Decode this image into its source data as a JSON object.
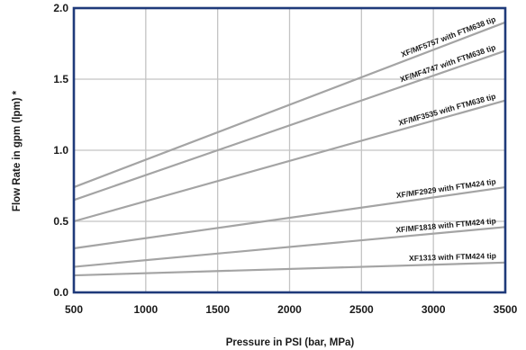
{
  "chart_data": {
    "type": "line",
    "xlabel": "Pressure in PSI (bar, MPa)",
    "ylabel": "Flow Rate in gpm (lpm) *",
    "xlim": [
      500,
      3500
    ],
    "ylim": [
      0,
      2.0
    ],
    "xticks": [
      "500",
      "1000",
      "1500",
      "2000",
      "2500",
      "3000",
      "3500"
    ],
    "yticks": [
      "0.0",
      "0.5",
      "1.0",
      "1.5",
      "2.0"
    ],
    "grid": true,
    "colors": {
      "series": "#a4a4a4",
      "grid": "#c4c4c4",
      "frame": "#1f3a7a",
      "text": "#1a1a1a"
    },
    "series": [
      {
        "name": "XF/MF5757 with FTM638 tip",
        "x": [
          500,
          3500
        ],
        "values": [
          0.74,
          1.9
        ]
      },
      {
        "name": "XF/MF4747 with FTM638 tip",
        "x": [
          500,
          3500
        ],
        "values": [
          0.65,
          1.7
        ]
      },
      {
        "name": "XF/MF3535 with FTM638 tip",
        "x": [
          500,
          3500
        ],
        "values": [
          0.5,
          1.35
        ]
      },
      {
        "name": "XF/MF2929 with FTM424 tip",
        "x": [
          500,
          3500
        ],
        "values": [
          0.31,
          0.74
        ]
      },
      {
        "name": "XF/MF1818 with FTM424 tip",
        "x": [
          500,
          3500
        ],
        "values": [
          0.18,
          0.46
        ]
      },
      {
        "name": "XF1313 with FTM424 tip",
        "x": [
          500,
          3500
        ],
        "values": [
          0.12,
          0.21
        ]
      }
    ]
  }
}
